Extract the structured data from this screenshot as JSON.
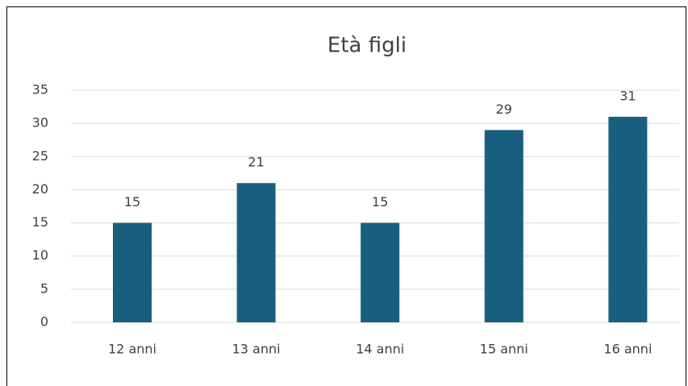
{
  "chart_data": {
    "type": "bar",
    "title": "Età figli",
    "categories": [
      "12 anni",
      "13 anni",
      "14 anni",
      "15 anni",
      "16 anni"
    ],
    "values": [
      15,
      21,
      15,
      29,
      31
    ],
    "color": "#185f7f",
    "ylim": [
      0,
      35
    ],
    "yticks": [
      0,
      5,
      10,
      15,
      20,
      25,
      30,
      35
    ],
    "grid": true,
    "data_labels": true
  }
}
